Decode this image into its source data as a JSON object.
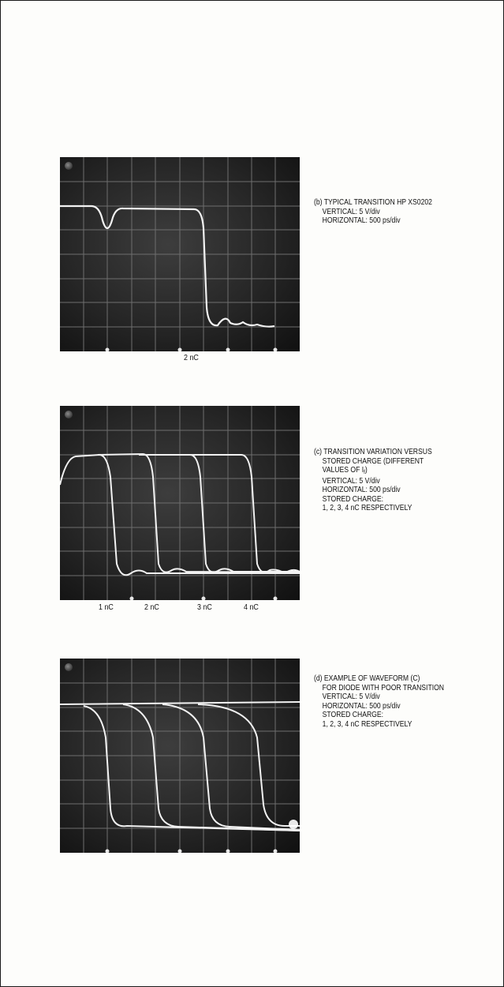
{
  "panel_b": {
    "caption": [
      "(b) TYPICAL TRANSITION HP XS0202",
      "VERTICAL: 5 V/div",
      "HORIZONTAL: 500 ps/div"
    ],
    "labels": [
      "2 nC"
    ]
  },
  "panel_c": {
    "caption_line1": "(c) TRANSITION VARIATION VERSUS",
    "caption_line2": "STORED CHARGE (DIFFERENT",
    "caption_line3_pre": "VALUES OF I",
    "caption_line3_sub": "f",
    "caption_line3_post": ")",
    "caption_rest": [
      "VERTICAL: 5 V/div",
      "HORIZONTAL: 500 ps/div",
      "STORED CHARGE:",
      "1, 2, 3, 4 nC  RESPECTIVELY"
    ],
    "labels": [
      "1 nC",
      "2 nC",
      "3 nC",
      "4 nC"
    ]
  },
  "panel_d": {
    "caption": [
      "(d) EXAMPLE OF WAVEFORM (C)",
      "FOR DIODE WITH POOR TRANSITION",
      "VERTICAL: 5 V/div",
      "HORIZONTAL: 500 ps/div",
      "STORED CHARGE:",
      "1, 2, 3, 4 nC  RESPECTIVELY"
    ]
  },
  "colors": {
    "screen": "#262626",
    "grid": "#6e6e6e",
    "trace": "#f2f2f2",
    "text": "#111111"
  }
}
